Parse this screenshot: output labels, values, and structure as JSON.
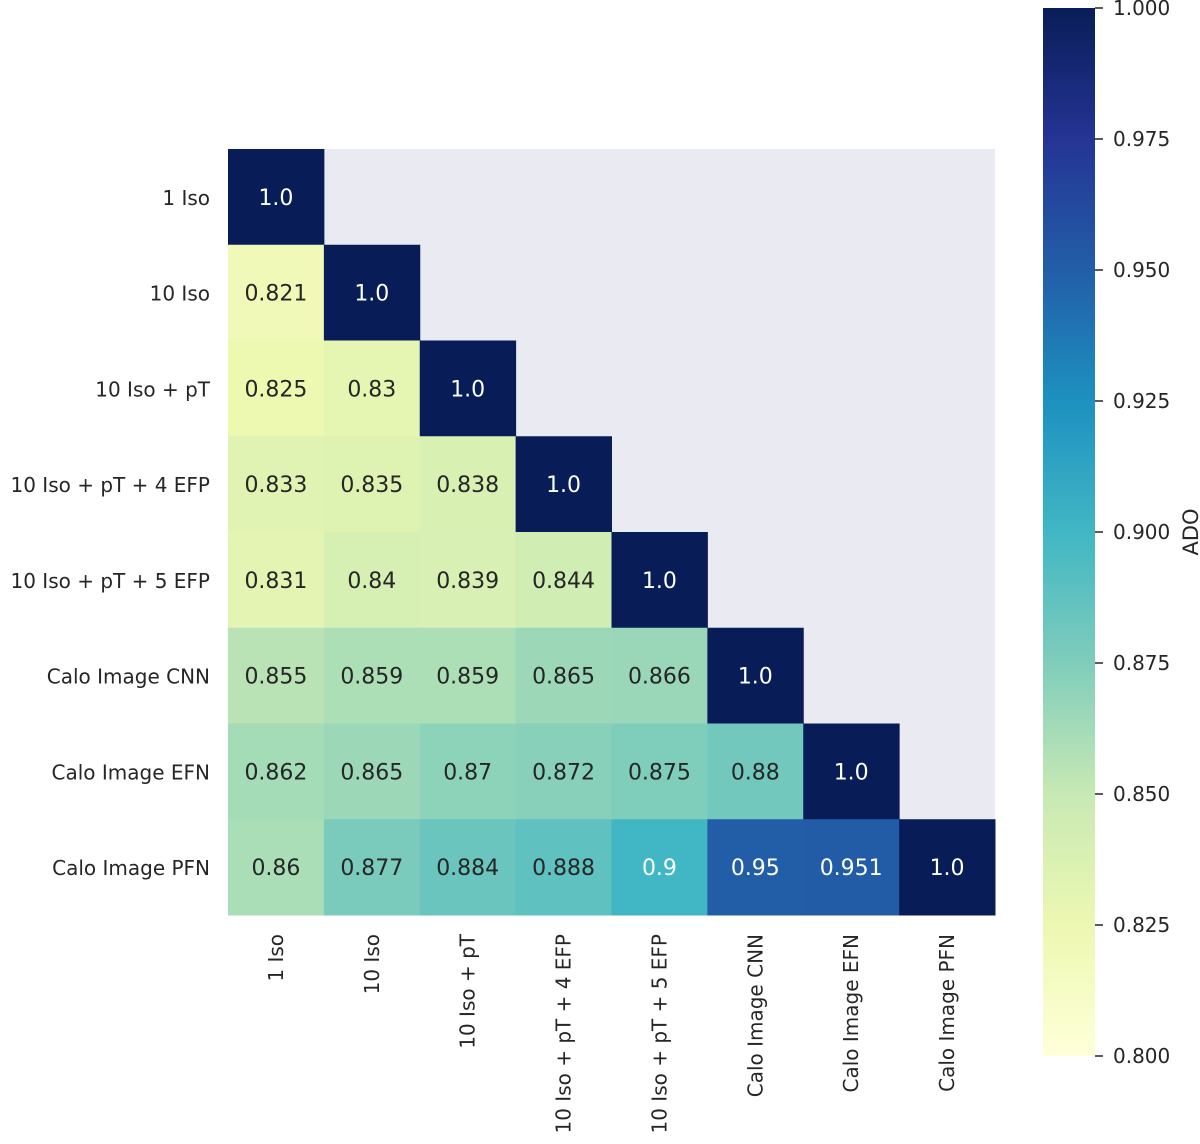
{
  "chart_data": {
    "type": "heatmap",
    "title": "",
    "row_labels": [
      "1 Iso",
      "10 Iso",
      "10 Iso + pT",
      "10 Iso + pT + 4 EFP",
      "10 Iso + pT + 5 EFP",
      "Calo Image CNN",
      "Calo Image EFN",
      "Calo Image PFN"
    ],
    "col_labels": [
      "1 Iso",
      "10 Iso",
      "10 Iso + pT",
      "10 Iso + pT + 4 EFP",
      "10 Iso + pT + 5 EFP",
      "Calo Image CNN",
      "Calo Image EFN",
      "Calo Image PFN"
    ],
    "values": [
      [
        "1.0"
      ],
      [
        "0.821",
        "1.0"
      ],
      [
        "0.825",
        "0.83",
        "1.0"
      ],
      [
        "0.833",
        "0.835",
        "0.838",
        "1.0"
      ],
      [
        "0.831",
        "0.84",
        "0.839",
        "0.844",
        "1.0"
      ],
      [
        "0.855",
        "0.859",
        "0.859",
        "0.865",
        "0.866",
        "1.0"
      ],
      [
        "0.862",
        "0.865",
        "0.87",
        "0.872",
        "0.875",
        "0.88",
        "1.0"
      ],
      [
        "0.86",
        "0.877",
        "0.884",
        "0.888",
        "0.9",
        "0.95",
        "0.951",
        "1.0"
      ]
    ],
    "mask": "upper-triangle",
    "colormap": "YlGnBu",
    "colorbar": {
      "label": "ADO",
      "range": [
        0.8,
        1.0
      ],
      "ticks": [
        "0.800",
        "0.825",
        "0.850",
        "0.875",
        "0.900",
        "0.925",
        "0.950",
        "0.975",
        "1.000"
      ]
    },
    "colors": {
      "masked_background": "#eaeaf2"
    }
  }
}
